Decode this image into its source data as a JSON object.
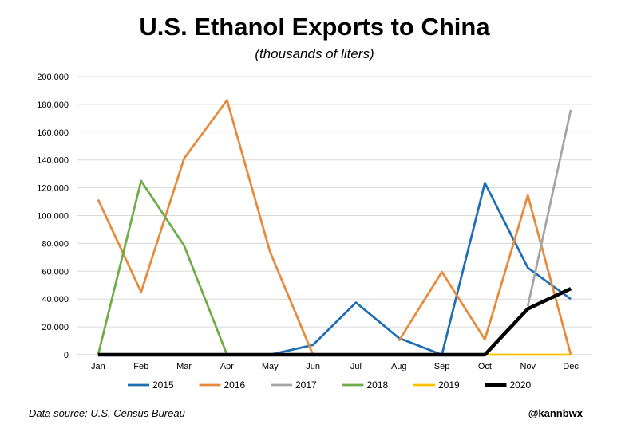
{
  "chart_data": {
    "type": "line",
    "title": "U.S. Ethanol Exports to China",
    "subtitle": "(thousands of liters)",
    "categories": [
      "Jan",
      "Feb",
      "Mar",
      "Apr",
      "May",
      "Jun",
      "Jul",
      "Aug",
      "Sep",
      "Oct",
      "Nov",
      "Dec"
    ],
    "ylim": [
      0,
      200000
    ],
    "yticks": [
      0,
      20000,
      40000,
      60000,
      80000,
      100000,
      120000,
      140000,
      160000,
      180000,
      200000
    ],
    "ytick_labels": [
      "0",
      "20,000",
      "40,000",
      "60,000",
      "80,000",
      "100,000",
      "120,000",
      "140,000",
      "160,000",
      "180,000",
      "200,000"
    ],
    "grid": true,
    "legend_position": "bottom",
    "series": [
      {
        "name": "2015",
        "color": "#1f6fb5",
        "values": [
          null,
          null,
          null,
          null,
          0,
          7000,
          37500,
          12000,
          0,
          123500,
          62500,
          40000
        ]
      },
      {
        "name": "2016",
        "color": "#e88a3c",
        "values": [
          111500,
          45000,
          141000,
          183000,
          74000,
          0,
          null,
          10000,
          59500,
          11000,
          114500,
          0
        ]
      },
      {
        "name": "2017",
        "color": "#a5a5a5",
        "values": [
          null,
          null,
          null,
          null,
          null,
          null,
          null,
          null,
          null,
          null,
          35000,
          176000
        ]
      },
      {
        "name": "2018",
        "color": "#70ad47",
        "values": [
          0,
          125000,
          78500,
          0,
          null,
          null,
          null,
          null,
          null,
          null,
          null,
          null
        ]
      },
      {
        "name": "2019",
        "color": "#ffc000",
        "values": [
          null,
          null,
          null,
          null,
          null,
          null,
          null,
          null,
          null,
          0,
          0,
          0
        ]
      },
      {
        "name": "2020",
        "color": "#000000",
        "values": [
          0,
          0,
          0,
          0,
          0,
          0,
          0,
          0,
          0,
          0,
          33000,
          47500
        ]
      }
    ]
  },
  "footer": {
    "source": "Data source: U.S. Census Bureau",
    "handle": "@kannbwx"
  }
}
